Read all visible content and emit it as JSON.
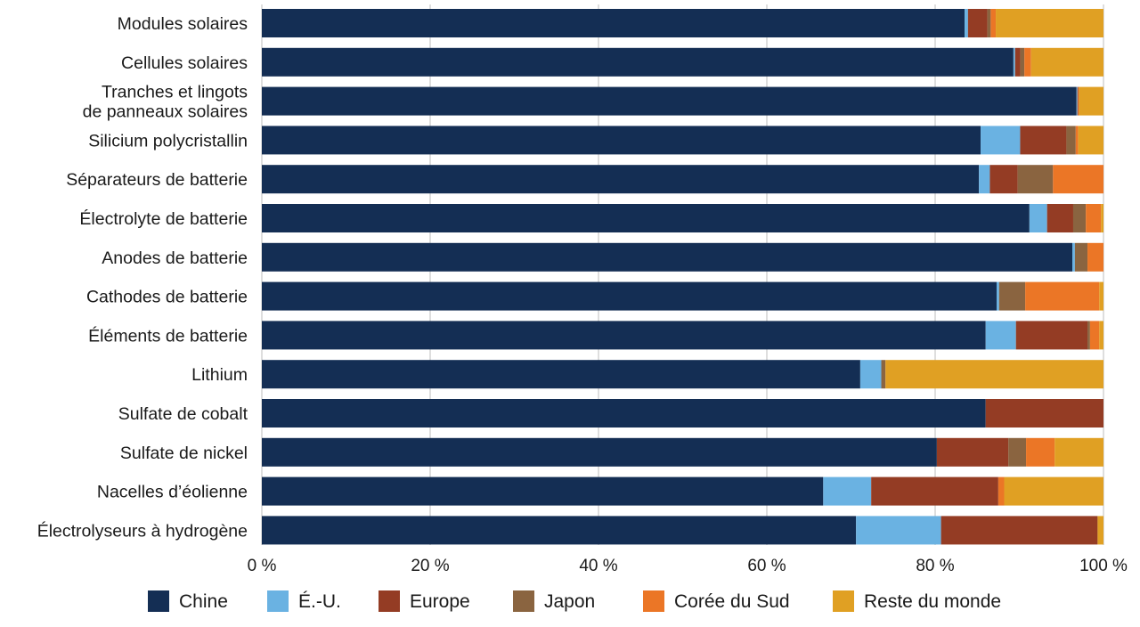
{
  "chart_data": {
    "type": "bar",
    "orientation": "horizontal",
    "stacked": true,
    "categories": [
      [
        "Modules solaires"
      ],
      [
        "Cellules solaires"
      ],
      [
        "Tranches et lingots",
        "de panneaux solaires"
      ],
      [
        "Silicium polycristallin"
      ],
      [
        "Séparateurs de batterie"
      ],
      [
        "Électrolyte de batterie"
      ],
      [
        "Anodes de batterie"
      ],
      [
        "Cathodes de batterie"
      ],
      [
        "Éléments de batterie"
      ],
      [
        "Lithium"
      ],
      [
        "Sulfate de cobalt"
      ],
      [
        "Sulfate de nickel"
      ],
      [
        "Nacelles d’éolienne"
      ],
      [
        "Électrolyseurs à hydrogène"
      ]
    ],
    "series": [
      {
        "name": "Chine",
        "color": "#142e54",
        "values": [
          83.5,
          89.3,
          96.8,
          85.4,
          85.2,
          91.2,
          96.3,
          87.3,
          86.0,
          71.1,
          86.0,
          80.2,
          66.7,
          70.6
        ]
      },
      {
        "name": "É.-U.",
        "color": "#6ab2e2",
        "values": [
          0.4,
          0.2,
          0.1,
          4.7,
          1.3,
          2.1,
          0.3,
          0.3,
          3.6,
          2.5,
          0.0,
          0.0,
          5.7,
          10.1
        ]
      },
      {
        "name": "Europe",
        "color": "#943c24",
        "values": [
          2.3,
          0.6,
          0.1,
          5.5,
          3.3,
          3.1,
          0.0,
          0.0,
          8.5,
          0.0,
          14.0,
          8.5,
          15.1,
          18.6
        ]
      },
      {
        "name": "Japon",
        "color": "#8a6440",
        "values": [
          0.4,
          0.5,
          0.0,
          1.1,
          4.2,
          1.5,
          1.5,
          3.1,
          0.3,
          0.5,
          0.0,
          2.1,
          0.0,
          0.0
        ]
      },
      {
        "name": "Corée du Sud",
        "color": "#eb7626",
        "values": [
          0.6,
          0.8,
          0.1,
          0.3,
          6.0,
          1.8,
          1.9,
          8.8,
          1.1,
          0.0,
          0.0,
          3.4,
          0.7,
          0.0
        ]
      },
      {
        "name": "Reste du monde",
        "color": "#e0a023",
        "values": [
          12.8,
          8.6,
          2.9,
          3.0,
          0.0,
          0.3,
          0.0,
          0.5,
          0.5,
          25.9,
          0.0,
          5.8,
          11.8,
          0.7
        ]
      }
    ],
    "x_ticks": [
      "0 %",
      "20 %",
      "40 %",
      "60 %",
      "80 %",
      "100 %"
    ],
    "xlim": [
      0,
      100
    ],
    "grid": true,
    "legend_position": "bottom",
    "title": "",
    "xlabel": "",
    "ylabel": ""
  }
}
